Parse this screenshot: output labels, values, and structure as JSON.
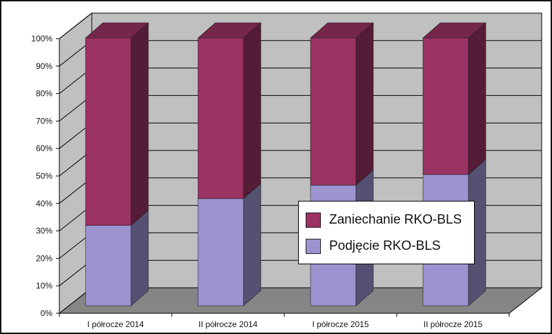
{
  "chart_data": {
    "type": "bar",
    "stacked": true,
    "percent_stacked": true,
    "three_d": true,
    "categories": [
      "I półrocze 2014",
      "II półrocze 2014",
      "I półrocze 2015",
      "II półrocze 2015"
    ],
    "series": [
      {
        "name": "Podjęcie RKO-BLS",
        "values": [
          30,
          40,
          45,
          49
        ],
        "color": "#9b94d0"
      },
      {
        "name": "Zaniechanie RKO-BLS",
        "values": [
          70,
          60,
          55,
          51
        ],
        "color": "#9b3264"
      }
    ],
    "ylim": [
      0,
      100
    ],
    "y_ticks": [
      "0%",
      "10%",
      "20%",
      "30%",
      "40%",
      "50%",
      "60%",
      "70%",
      "80%",
      "90%",
      "100%"
    ],
    "grid": true,
    "legend": "inside-right",
    "colors": {
      "wall": "#c0c0c0",
      "floor": "#858585",
      "grid": "#000000"
    }
  }
}
